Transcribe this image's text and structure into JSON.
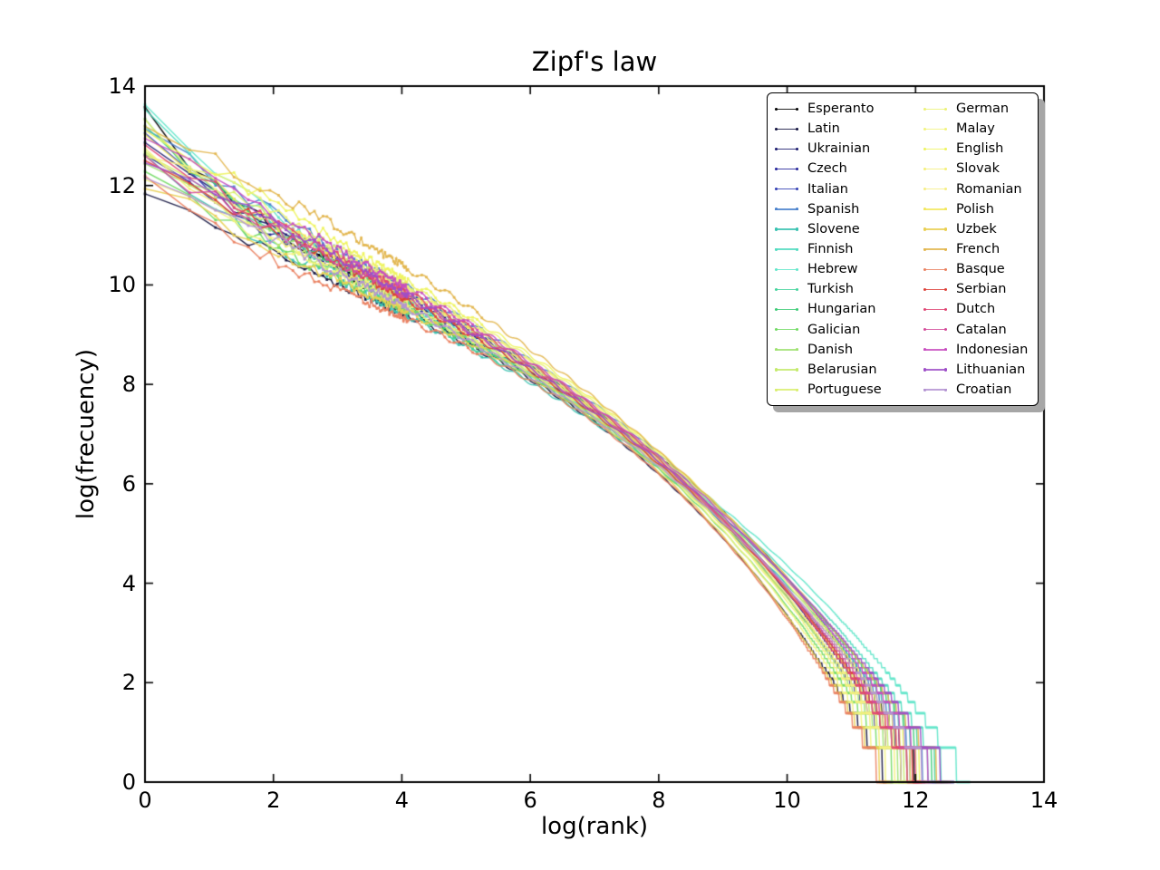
{
  "figure": {
    "background": "#ffffff",
    "axes": {
      "spine_color": "#000000",
      "tick_direction": "in",
      "grid": false
    }
  },
  "chart_data": {
    "type": "line",
    "title": "Zipf's law",
    "xlabel": "log(rank)",
    "ylabel": "log(frecuency)",
    "xlim": [
      0,
      14
    ],
    "ylim": [
      0,
      14
    ],
    "xticks": [
      0,
      2,
      4,
      6,
      8,
      10,
      12,
      14
    ],
    "yticks": [
      0,
      2,
      4,
      6,
      8,
      10,
      12,
      14
    ],
    "grid": false,
    "legend": {
      "position": "upper right",
      "columns": 2,
      "shadow": true,
      "rows_per_column": 15
    },
    "model": "Word-frequency Zipf curves in log-log space. Each series: cubic y(x)=y0+a1*x+a2*x^2+a3*x^3 through (0,y0),(4,y4),(8,y8),(xend,0); x=log(rank), y=log(frequency); integer-frequency quantization produces the staircase tail; jagged rank-aligned points with square markers at low ranks.",
    "series": [
      {
        "name": "Esperanto",
        "color": "#000000",
        "y0": 13.4,
        "y4": 9.6,
        "y8": 6.55,
        "xend": 12.15
      },
      {
        "name": "Latin",
        "color": "#12123e",
        "y0": 12.05,
        "y4": 9.45,
        "y8": 6.2,
        "xend": 11.65
      },
      {
        "name": "Ukrainian",
        "color": "#1b1b6e",
        "y0": 12.7,
        "y4": 9.8,
        "y8": 6.45,
        "xend": 12.05
      },
      {
        "name": "Czech",
        "color": "#25259b",
        "y0": 12.55,
        "y4": 9.7,
        "y8": 6.4,
        "xend": 11.95
      },
      {
        "name": "Italian",
        "color": "#3340b4",
        "y0": 12.9,
        "y4": 9.85,
        "y8": 6.5,
        "xend": 12.1
      },
      {
        "name": "Spanish",
        "color": "#4a81cc",
        "y0": 13.1,
        "y4": 10.0,
        "y8": 6.6,
        "xend": 12.3
      },
      {
        "name": "Slovene",
        "color": "#38c2b0",
        "y0": 12.35,
        "y4": 9.45,
        "y8": 6.3,
        "xend": 12.4
      },
      {
        "name": "Finnish",
        "color": "#52dbc0",
        "y0": 13.3,
        "y4": 9.7,
        "y8": 6.45,
        "xend": 12.6
      },
      {
        "name": "Hebrew",
        "color": "#62e6ca",
        "y0": 13.45,
        "y4": 9.75,
        "y8": 6.5,
        "xend": 12.85
      },
      {
        "name": "Turkish",
        "color": "#46d49e",
        "y0": 12.95,
        "y4": 9.55,
        "y8": 6.35,
        "xend": 12.5
      },
      {
        "name": "Hungarian",
        "color": "#3ecb77",
        "y0": 13.2,
        "y4": 9.65,
        "y8": 6.4,
        "xend": 12.45
      },
      {
        "name": "Galician",
        "color": "#72da64",
        "y0": 12.2,
        "y4": 9.55,
        "y8": 6.3,
        "xend": 11.8
      },
      {
        "name": "Danish",
        "color": "#a0e272",
        "y0": 12.6,
        "y4": 9.8,
        "y8": 6.45,
        "xend": 11.9
      },
      {
        "name": "Belarusian",
        "color": "#c4ea6c",
        "y0": 12.45,
        "y4": 9.65,
        "y8": 6.35,
        "xend": 12.0
      },
      {
        "name": "Portuguese",
        "color": "#d9ee70",
        "y0": 12.85,
        "y4": 9.95,
        "y8": 6.55,
        "xend": 12.05
      },
      {
        "name": "German",
        "color": "#ecf277",
        "y0": 13.15,
        "y4": 10.05,
        "y8": 6.6,
        "xend": 12.2
      },
      {
        "name": "Malay",
        "color": "#f2f37f",
        "y0": 12.3,
        "y4": 9.6,
        "y8": 6.35,
        "xend": 11.7
      },
      {
        "name": "English",
        "color": "#eef45f",
        "y0": 13.35,
        "y4": 10.15,
        "y8": 6.65,
        "xend": 12.25
      },
      {
        "name": "Slovak",
        "color": "#f5f07b",
        "y0": 12.5,
        "y4": 9.7,
        "y8": 6.4,
        "xend": 11.85
      },
      {
        "name": "Romanian",
        "color": "#f6ee85",
        "y0": 12.75,
        "y4": 9.9,
        "y8": 6.5,
        "xend": 11.95
      },
      {
        "name": "Polish",
        "color": "#f2e75e",
        "y0": 12.9,
        "y4": 9.85,
        "y8": 6.45,
        "xend": 12.1
      },
      {
        "name": "Uzbek",
        "color": "#e9cf52",
        "y0": 12.15,
        "y4": 9.5,
        "y8": 6.25,
        "xend": 11.6
      },
      {
        "name": "French",
        "color": "#e2b64e",
        "y0": 13.25,
        "y4": 10.4,
        "y8": 6.65,
        "xend": 12.55
      },
      {
        "name": "Basque",
        "color": "#ea8161",
        "y0": 12.0,
        "y4": 9.35,
        "y8": 6.2,
        "xend": 11.55
      },
      {
        "name": "Serbian",
        "color": "#dd4139",
        "y0": 12.65,
        "y4": 9.75,
        "y8": 6.4,
        "xend": 12.15
      },
      {
        "name": "Dutch",
        "color": "#e04674",
        "y0": 12.8,
        "y4": 9.9,
        "y8": 6.5,
        "xend": 12.05
      },
      {
        "name": "Catalan",
        "color": "#d44b9a",
        "y0": 12.55,
        "y4": 9.8,
        "y8": 6.45,
        "xend": 12.2
      },
      {
        "name": "Indonesian",
        "color": "#c84ec0",
        "y0": 12.95,
        "y4": 10.0,
        "y8": 6.55,
        "xend": 12.4
      },
      {
        "name": "Lithuanian",
        "color": "#9e4fc8",
        "y0": 12.7,
        "y4": 9.85,
        "y8": 6.45,
        "xend": 12.6
      },
      {
        "name": "Croatian",
        "color": "#b493d2",
        "y0": 12.4,
        "y4": 9.6,
        "y8": 6.35,
        "xend": 12.3
      }
    ]
  }
}
